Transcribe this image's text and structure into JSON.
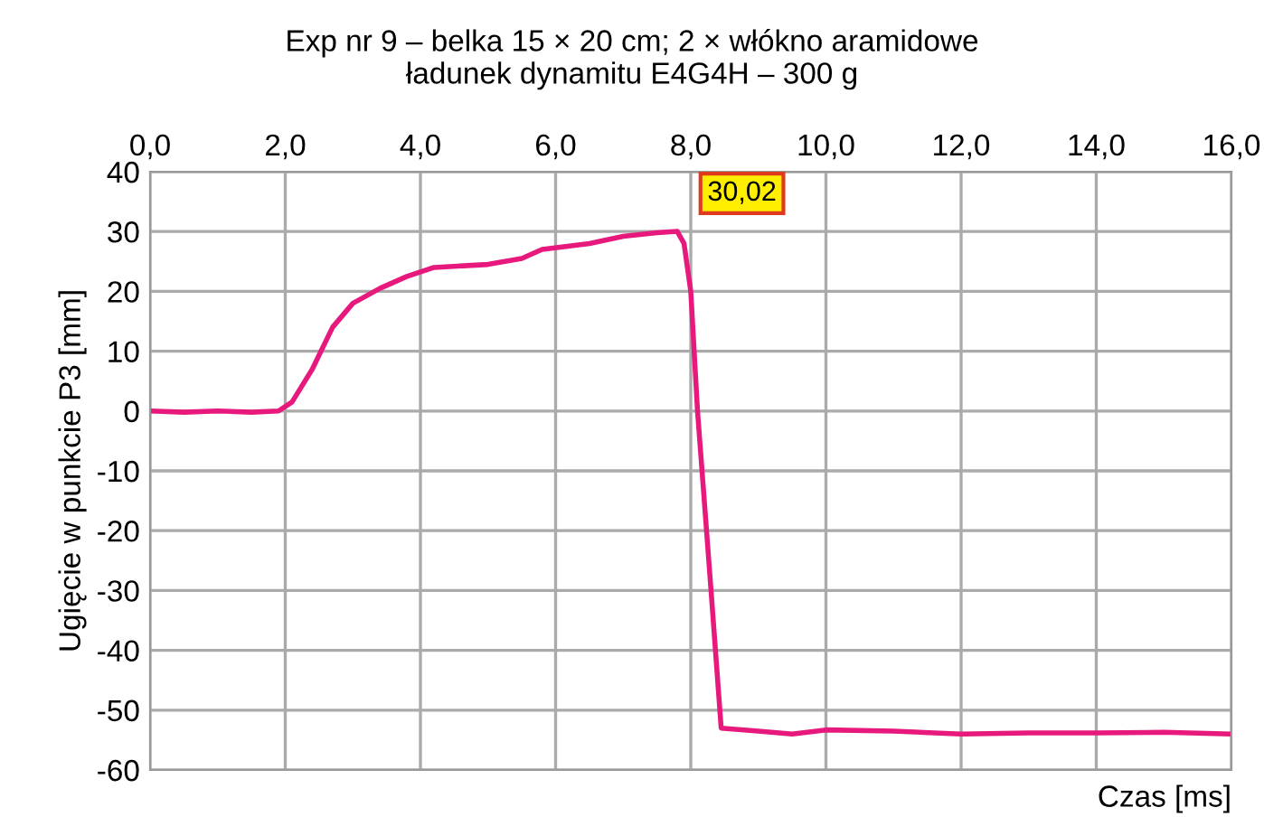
{
  "chart_data": {
    "type": "line",
    "title": "Exp nr 9 – belka 15 × 20 cm; 2 × włókno aramidowe\nładunek dynamitu E4G4H – 300 g",
    "xlabel": "Czas [ms]",
    "ylabel": "Ugięcie w punkcie P3 [mm]",
    "series": [
      {
        "color": "#e8197d",
        "x": [
          0,
          0.5,
          1.0,
          1.5,
          1.9,
          2.1,
          2.4,
          2.7,
          3.0,
          3.4,
          3.8,
          4.2,
          5.0,
          5.5,
          5.8,
          6.5,
          7.0,
          7.5,
          7.8,
          7.9,
          8.0,
          8.1,
          8.3,
          8.45,
          9.0,
          9.5,
          10.0,
          11.0,
          12.0,
          13.0,
          14.0,
          15.0,
          16.0
        ],
        "values": [
          0,
          -0.2,
          0,
          -0.2,
          0,
          1.5,
          7,
          14,
          18,
          20.5,
          22.5,
          24,
          24.5,
          25.5,
          27,
          28,
          29.2,
          29.8,
          30.02,
          28,
          20,
          0,
          -30,
          -53,
          -53.5,
          -54,
          -53.3,
          -53.5,
          -54,
          -53.8,
          -53.8,
          -53.7,
          -54
        ]
      }
    ],
    "annotations": [
      {
        "text": "30,02",
        "x": 7.8,
        "y": 30.02
      }
    ],
    "xlim": [
      0,
      16
    ],
    "xticks": [
      {
        "value": 0,
        "label": "0,0"
      },
      {
        "value": 2,
        "label": "2,0"
      },
      {
        "value": 4,
        "label": "4,0"
      },
      {
        "value": 6,
        "label": "6,0"
      },
      {
        "value": 8,
        "label": "8,0"
      },
      {
        "value": 10,
        "label": "10,0"
      },
      {
        "value": 12,
        "label": "12,0"
      },
      {
        "value": 14,
        "label": "14,0"
      },
      {
        "value": 16,
        "label": "16,0"
      }
    ],
    "ylim": [
      -60,
      40
    ],
    "yticks": [
      -60,
      -50,
      -40,
      -30,
      -20,
      -10,
      0,
      10,
      20,
      30,
      40
    ],
    "grid": true,
    "marker": "none",
    "line_style": "solid"
  }
}
